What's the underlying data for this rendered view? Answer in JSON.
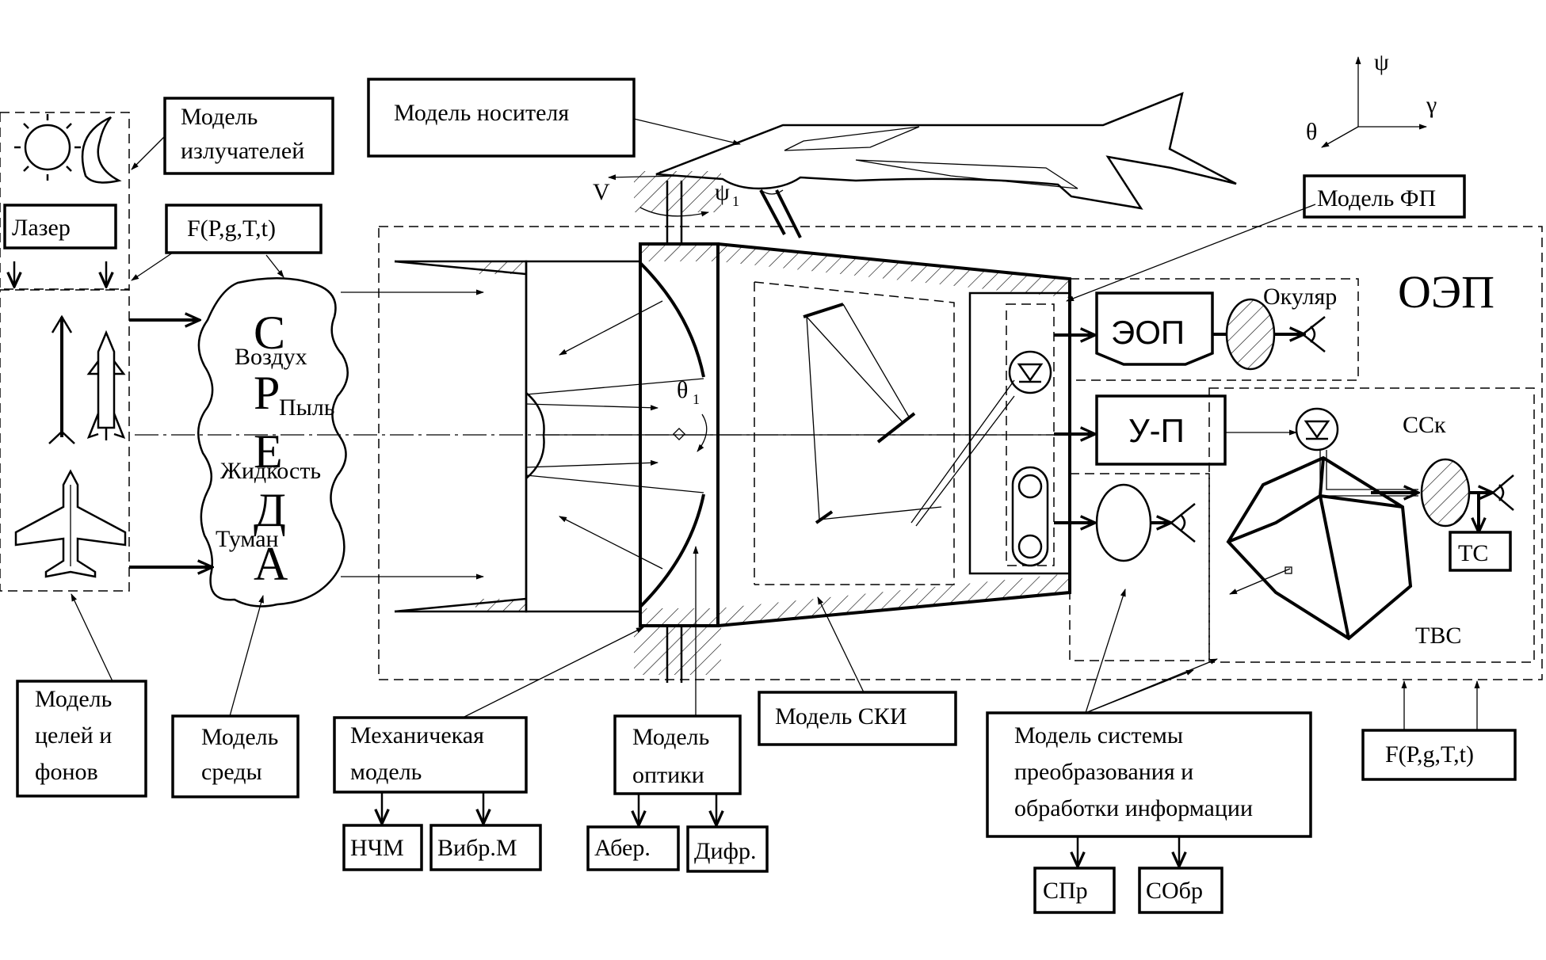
{
  "labels": {
    "model_emitters": [
      "Модель",
      "излучателей"
    ],
    "laser": "Лазер",
    "env_params": "F(P,g,T,t)",
    "carrier_model": "Модель носителя",
    "fp_model": "Модель ФП",
    "oep": "ОЭП",
    "eyepiece": "Окуляр",
    "eop": "ЭОП",
    "amp": "У-П",
    "cck": "ССк",
    "tvs": "ТВС",
    "tc": "ТС",
    "sreda": [
      "С",
      "Р",
      "Е",
      "Д",
      "А"
    ],
    "media": [
      "Воздух",
      "Пыль",
      "Жидкость",
      "Туман"
    ],
    "targets_model": [
      "Модель",
      "целей и",
      "фонов"
    ],
    "env_model": [
      "Модель",
      "среды"
    ],
    "mech_model": [
      "Механичекая",
      "модель"
    ],
    "nchm": "НЧМ",
    "vibr": "Вибр.М",
    "optics_model": [
      "Модель",
      "оптики"
    ],
    "aber": "Абер.",
    "difr": "Дифр.",
    "ski_model": "Модель СКИ",
    "info_model": [
      "Модель системы",
      "преобразования и",
      "обработки информации"
    ],
    "spr": "СПр",
    "sobr": "СОбр",
    "tvs_params": "F(P,g,T,t)",
    "axis_psi": "ψ",
    "axis_gamma": "γ",
    "axis_theta": "θ",
    "velocity": "V",
    "psi1": "ψ",
    "psi1_sub": "1",
    "theta1": "θ",
    "theta1_sub": "1"
  }
}
